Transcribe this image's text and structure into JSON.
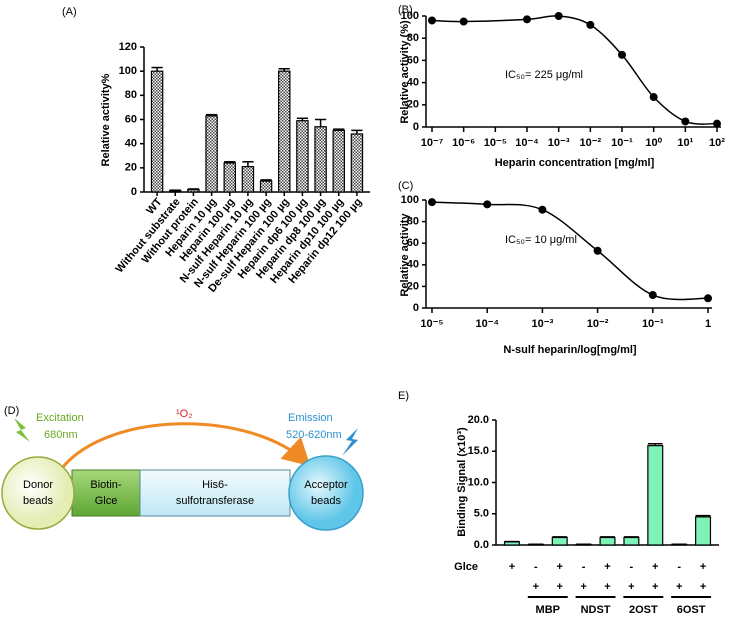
{
  "chart_data": [
    {
      "type": "bar",
      "panel_label": "(A)",
      "ylabel": "Relative activity%",
      "pattern": "checker",
      "color": "#9a9a9a",
      "categories": [
        "WT",
        "Without substrate",
        "Without protein",
        "Heparin 10 µg",
        "Heparin 100 µg",
        "N-sulf Heparin 10 µg",
        "N-sulf Heparin 100 µg",
        "De-sulf Heparin 100 µg",
        "Heparin dp6 100 µg",
        "Heparin dp8 100 µg",
        "Heparin dp10 100 µg",
        "Heparin dp12 100 µg"
      ],
      "values": [
        100,
        1,
        2,
        63,
        24,
        21,
        9,
        100,
        59,
        54,
        51,
        48
      ],
      "errors": [
        3,
        0.5,
        0.5,
        1,
        1,
        4,
        1,
        2,
        2,
        6,
        1,
        3
      ],
      "ylim": [
        0,
        120
      ],
      "yticks": [
        0,
        20,
        40,
        60,
        80,
        100,
        120
      ]
    },
    {
      "type": "line",
      "panel_label": "(B)",
      "ylabel": "Relative activity (%)",
      "xlabel": "Heparin concentration [mg/ml]",
      "annotation": "IC₅₀= 225 μg/ml",
      "xscale": "log",
      "color": "#000000",
      "x": [
        1e-07,
        1e-06,
        0.0001,
        0.001,
        0.01,
        0.1,
        1,
        10,
        100
      ],
      "values": [
        96,
        95,
        97,
        100,
        92,
        65,
        27,
        5,
        3
      ],
      "xlim": [
        1e-07,
        100
      ],
      "xticks": [
        {
          "value": 1e-07,
          "label": "10⁻⁷"
        },
        {
          "value": 1e-06,
          "label": "10⁻⁶"
        },
        {
          "value": 1e-05,
          "label": "10⁻⁵"
        },
        {
          "value": 0.0001,
          "label": "10⁻⁴"
        },
        {
          "value": 0.001,
          "label": "10⁻³"
        },
        {
          "value": 0.01,
          "label": "10⁻²"
        },
        {
          "value": 0.1,
          "label": "10⁻¹"
        },
        {
          "value": 1,
          "label": "10⁰"
        },
        {
          "value": 10,
          "label": "10¹"
        },
        {
          "value": 100,
          "label": "10²"
        }
      ],
      "ylim": [
        0,
        100
      ],
      "yticks": [
        0,
        20,
        40,
        60,
        80,
        100
      ]
    },
    {
      "type": "line",
      "panel_label": "(C)",
      "ylabel": "Relative activity",
      "xlabel": "N-sulf heparin/log[mg/ml]",
      "annotation": "IC₅₀= 10 μg/ml",
      "xscale": "log",
      "color": "#000000",
      "x": [
        1e-05,
        0.0001,
        0.001,
        0.01,
        0.1,
        1
      ],
      "values": [
        98,
        96,
        91,
        53,
        12,
        9
      ],
      "xlim": [
        1e-05,
        1
      ],
      "xticks": [
        {
          "value": 1e-05,
          "label": "10⁻⁵"
        },
        {
          "value": 0.0001,
          "label": "10⁻⁴"
        },
        {
          "value": 0.001,
          "label": "10⁻³"
        },
        {
          "value": 0.01,
          "label": "10⁻²"
        },
        {
          "value": 0.1,
          "label": "10⁻¹"
        },
        1
      ],
      "ylim": [
        0,
        100
      ],
      "yticks": [
        0,
        20,
        40,
        60,
        80,
        100
      ]
    },
    {
      "type": "bar",
      "panel_label": "E)",
      "ylabel": "Binding  Signal (x10³)",
      "color": "#7ff2b8",
      "categories": [
        null,
        null,
        null,
        null,
        null,
        null,
        null,
        null,
        null
      ],
      "values": [
        0.5,
        0.1,
        1.2,
        0.1,
        1.2,
        1.2,
        15.9,
        0.1,
        4.5
      ],
      "errors": [
        0.05,
        0.02,
        0.1,
        0.02,
        0.1,
        0.1,
        0.3,
        0.02,
        0.2
      ],
      "ylim": [
        0,
        20
      ],
      "yticks": [
        {
          "value": 0,
          "label": "0.0"
        },
        {
          "value": 5,
          "label": "5.0"
        },
        {
          "value": 10,
          "label": "10.0"
        },
        {
          "value": 15,
          "label": "15.0"
        },
        {
          "value": 20,
          "label": "20.0"
        }
      ],
      "condition_rows": [
        {
          "label": "Glce",
          "signs": [
            "+",
            "-",
            "+",
            "-",
            "+",
            "-",
            "+",
            "-",
            "+"
          ]
        },
        {
          "signs": [
            null,
            "+",
            "+",
            "+",
            "+",
            "+",
            "+",
            "+",
            "+"
          ]
        }
      ],
      "groups": [
        "MBP",
        "NDST",
        "2OST",
        "6OST"
      ]
    }
  ],
  "diagram": {
    "label": "(D)",
    "excitation": [
      "Excitation",
      "680nm"
    ],
    "singlet_oxygen": "¹O₂",
    "emission": [
      "Emission",
      "520-620nm"
    ],
    "donor": [
      "Donor",
      "beads"
    ],
    "biotin": [
      "Biotin-",
      "Glce"
    ],
    "enzyme": [
      "His6-",
      "sulfotransferase"
    ],
    "acceptor": [
      "Acceptor",
      "beads"
    ]
  }
}
